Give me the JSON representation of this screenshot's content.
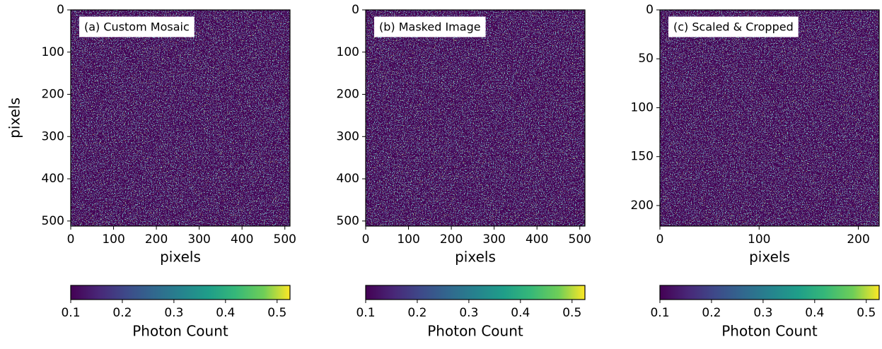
{
  "chart_data": [
    {
      "type": "heatmap",
      "title": "(a) Custom Mosaic",
      "xlabel": "pixels",
      "ylabel": "pixels",
      "xlim": [
        0,
        512
      ],
      "ylim": [
        512,
        0
      ],
      "xticks": [
        0,
        100,
        200,
        300,
        400,
        500
      ],
      "yticks": [
        0,
        100,
        200,
        300,
        400,
        500
      ],
      "colormap": "viridis",
      "colorbar": {
        "label": "Photon Count",
        "lim": [
          0.1,
          0.525
        ],
        "ticks": [
          0.1,
          0.2,
          0.3,
          0.4,
          0.5
        ]
      }
    },
    {
      "type": "heatmap",
      "title": "(b) Masked Image",
      "xlabel": "pixels",
      "xlim": [
        0,
        512
      ],
      "ylim": [
        512,
        0
      ],
      "xticks": [
        0,
        100,
        200,
        300,
        400,
        500
      ],
      "yticks": [
        0,
        100,
        200,
        300,
        400,
        500
      ],
      "colormap": "viridis",
      "colorbar": {
        "label": "Photon Count",
        "lim": [
          0.1,
          0.525
        ],
        "ticks": [
          0.1,
          0.2,
          0.3,
          0.4,
          0.5
        ]
      }
    },
    {
      "type": "heatmap",
      "title": "(c) Scaled & Cropped",
      "xlabel": "pixels",
      "xlim": [
        0,
        221
      ],
      "ylim": [
        221,
        0
      ],
      "xticks": [
        0,
        100,
        200
      ],
      "yticks": [
        0,
        50,
        100,
        150,
        200
      ],
      "colormap": "viridis",
      "colorbar": {
        "label": "Photon Count",
        "lim": [
          0.1,
          0.525
        ],
        "ticks": [
          0.1,
          0.2,
          0.3,
          0.4,
          0.5
        ]
      }
    }
  ]
}
